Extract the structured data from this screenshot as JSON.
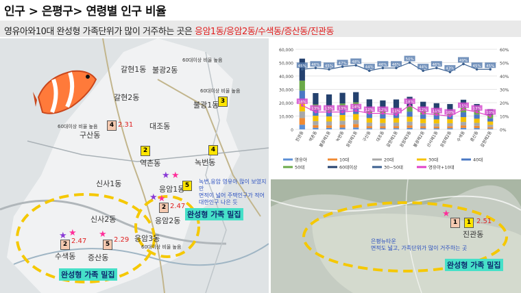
{
  "title": "인구 > 은평구> 연령별 인구 비율",
  "subtitle": {
    "prefix": "영유아와10대 완성형 가족단위가 많이 거주하는 곳은 ",
    "highlight": "응암1동/응암2동/수색동/증산동/진관동"
  },
  "left_map": {
    "districts": [
      "갈현1동",
      "불광2동",
      "갈현2동",
      "불광1동",
      "대조동",
      "구산동",
      "역촌동",
      "녹번동",
      "신사1동",
      "응암1동",
      "신사2동",
      "응암2동",
      "응암3동",
      "수색동",
      "증산동"
    ],
    "small_notes": [
      "60대이상 비율 높음",
      "60대이상 비율 높음",
      "60대이상 비율 높음",
      "60대이상 비율 높음"
    ],
    "boxes": [
      "4",
      "2",
      "3",
      "4",
      "5",
      "2",
      "2",
      "5"
    ],
    "ratios": [
      "2.31",
      "2.47",
      "2.47",
      "2.29"
    ],
    "note_lines": [
      "녹번,응암 영유아 많이 보였지만",
      "면적이 넓어 주택인구가 적어",
      "대한인구 나은 듯"
    ],
    "callouts": [
      "완성형 가족 밀집",
      "완성형 가족 밀집"
    ]
  },
  "right_map": {
    "district": "진관동",
    "boxes": [
      "1",
      "1"
    ],
    "ratio": "2.51",
    "note_lines": [
      "은평뉴타운",
      "면적도 넓고, 가족단위가 많이 거주하는 곳"
    ],
    "callout": "완성형 가족 밀집"
  },
  "chart_data": {
    "type": "bar",
    "stacked": true,
    "categories": [
      "진관동",
      "역촌동",
      "불광제1동",
      "녹번동",
      "응암제1동",
      "구산동",
      "대조동",
      "갈현제1동",
      "응암제3동",
      "불광제2동",
      "신사제1동",
      "응암제2동",
      "수색동",
      "증산동",
      "갈현제2동"
    ],
    "ylim": [
      0,
      60000
    ],
    "y_ticks": [
      "0",
      "10,000",
      "20,000",
      "30,000",
      "40,000",
      "50,000",
      "60,000"
    ],
    "y2lim": [
      0,
      60
    ],
    "y2_ticks": [
      "0%",
      "10%",
      "20%",
      "30%",
      "40%",
      "50%",
      "60%"
    ],
    "series": [
      {
        "name": "영유아",
        "color": "#5b8fd6",
        "values": [
          3500,
          1200,
          1100,
          1300,
          1400,
          900,
          800,
          900,
          1100,
          800,
          800,
          900,
          1100,
          1000,
          600
        ]
      },
      {
        "name": "10대",
        "color": "#f08a32",
        "values": [
          5000,
          2000,
          1900,
          2200,
          2600,
          1600,
          1500,
          1600,
          1900,
          1500,
          1400,
          1500,
          1900,
          1700,
          1100
        ]
      },
      {
        "name": "20대",
        "color": "#a8a8a8",
        "values": [
          5000,
          3000,
          2900,
          3000,
          3100,
          2600,
          2500,
          2600,
          2800,
          2400,
          2300,
          2200,
          2600,
          2200,
          1800
        ]
      },
      {
        "name": "30대",
        "color": "#f5c200",
        "values": [
          7500,
          4000,
          3800,
          4300,
          4400,
          3400,
          3300,
          3400,
          3700,
          3200,
          3000,
          3000,
          3600,
          3100,
          2400
        ]
      },
      {
        "name": "40대",
        "color": "#4a78c4",
        "values": [
          8000,
          4200,
          3900,
          4300,
          4500,
          3400,
          3300,
          3500,
          3800,
          3300,
          3100,
          3000,
          3600,
          3100,
          2400
        ]
      },
      {
        "name": "50대",
        "color": "#6aaa48",
        "values": [
          7500,
          4300,
          4200,
          4300,
          4300,
          3600,
          3500,
          3600,
          3800,
          3400,
          3200,
          3100,
          3400,
          3100,
          2500
        ]
      },
      {
        "name": "60대이상",
        "color": "#24416e",
        "values": [
          16500,
          8500,
          8400,
          8000,
          7600,
          7000,
          6800,
          6800,
          7300,
          6100,
          5800,
          5300,
          6000,
          4800,
          4400
        ]
      }
    ],
    "line_series": [
      {
        "name": "30~50대",
        "color": "#3a5f8f",
        "axis": "right",
        "values": [
          45,
          46,
          45,
          47,
          48,
          44,
          46,
          46,
          50,
          44,
          46,
          43,
          49,
          45,
          45
        ],
        "labels": [
          "45%",
          "46%",
          "45%",
          "47%",
          "48%",
          "44%",
          "46%",
          "46%",
          "50%",
          "44%",
          "46%",
          "43%",
          "49%",
          "45%",
          "45%"
        ]
      },
      {
        "name": "영유아+10대",
        "color": "#e040c8",
        "axis": "right",
        "values": [
          18,
          13,
          13,
          13,
          14,
          12,
          12,
          11,
          18,
          12,
          11,
          10,
          15,
          13,
          10
        ],
        "labels": [
          "18%",
          "13%",
          "13%",
          "13%",
          "14%",
          "12%",
          "12%",
          "11%",
          "18%",
          "12%",
          "11%",
          "10%",
          "15%",
          "13%",
          "10%"
        ]
      }
    ],
    "legend": [
      "영유아",
      "10대",
      "20대",
      "30대",
      "40대",
      "50대",
      "60대이상",
      "30~50대",
      "영유아+10대"
    ],
    "legend_placement": "bottom"
  }
}
